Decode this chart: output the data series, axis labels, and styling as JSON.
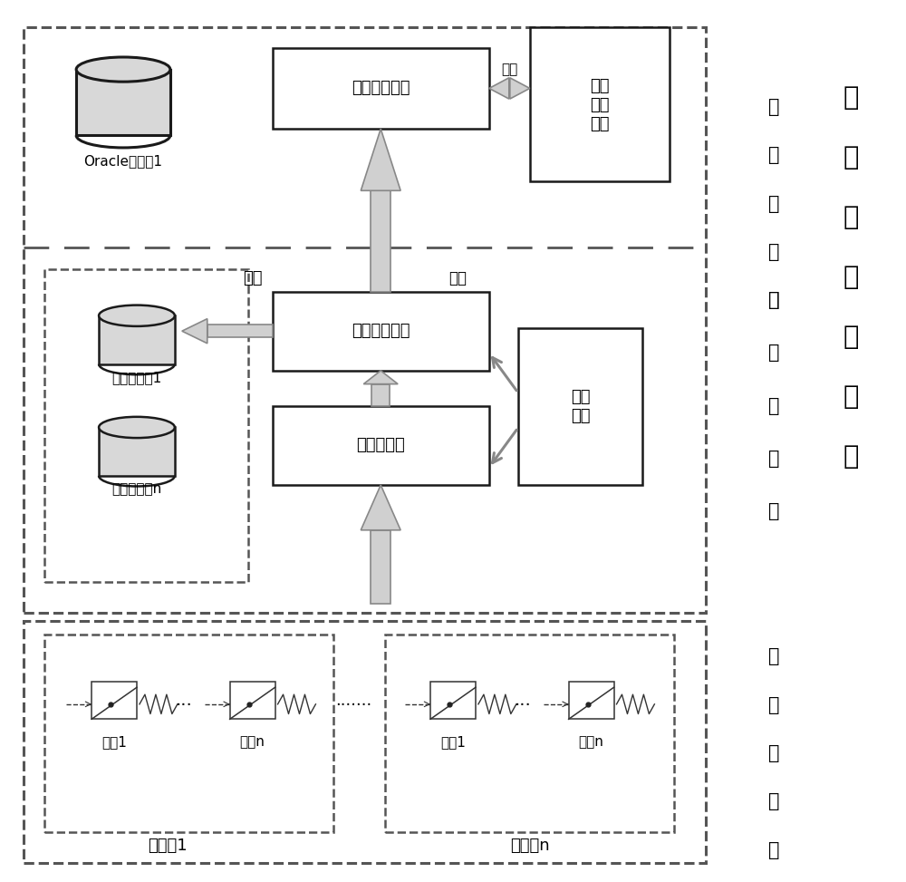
{
  "bg_color": "#ffffff",
  "chars_middleware": [
    "实",
    "时",
    "处",
    "理",
    "中",
    "间",
    "件"
  ],
  "chars_data_dist": [
    "数",
    "据",
    "分",
    "发",
    "层"
  ],
  "chars_data_proc": [
    "数",
    "据",
    "处",
    "理",
    "层"
  ],
  "chars_bottom": [
    "底",
    "层",
    "数",
    "据",
    "层"
  ],
  "label_sync_update": "同步更新模块",
  "label_search": "检索\n服务\n模块",
  "label_branch": "分库存储模块",
  "label_engine": "引擎\n模块",
  "label_preprocess": "预处理模块",
  "label_oracle": "Oracle数据库1",
  "label_mem1": "内存数据库1",
  "label_memn": "内存数据库n",
  "label_tongbu": "同步",
  "label_yingshe": "映射",
  "label_caiji": "采集",
  "label_dev1_1": "设备1",
  "label_devn_1": "设备n",
  "label_dev1_2": "设备1",
  "label_devn_2": "设备n",
  "label_sub1": "子系统1",
  "label_subn": "子系绛n"
}
